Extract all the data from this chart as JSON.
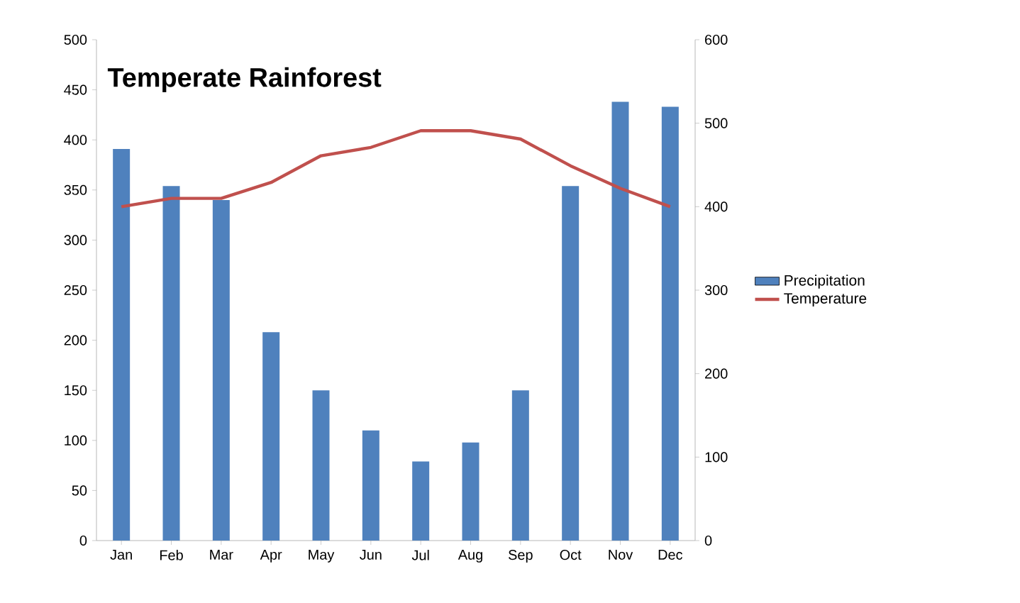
{
  "chart_data": {
    "type": "bar",
    "title": "Temperate Rainforest",
    "categories": [
      "Jan",
      "Feb",
      "Mar",
      "Apr",
      "May",
      "Jun",
      "Jul",
      "Aug",
      "Sep",
      "Oct",
      "Nov",
      "Dec"
    ],
    "series": [
      {
        "name": "Precipitation",
        "color": "#4f81bd",
        "values": [
          391,
          354,
          340,
          208,
          150,
          110,
          79,
          98,
          150,
          354,
          438,
          433
        ]
      },
      {
        "name": "Temperature",
        "type": "line",
        "axis": "y2",
        "color": "#c0504d",
        "values": [
          400,
          410,
          410,
          429,
          461,
          471,
          491,
          491,
          481,
          449,
          422,
          400
        ]
      }
    ],
    "ylim": [
      0,
      500
    ],
    "yticks": [
      0,
      50,
      100,
      150,
      200,
      250,
      300,
      350,
      400,
      450,
      500
    ],
    "y2lim": [
      0,
      600
    ],
    "y2ticks": [
      0,
      100,
      200,
      300,
      400,
      500,
      600
    ],
    "legend": "right",
    "grid": false,
    "marker": "none",
    "line_style": "solid"
  }
}
